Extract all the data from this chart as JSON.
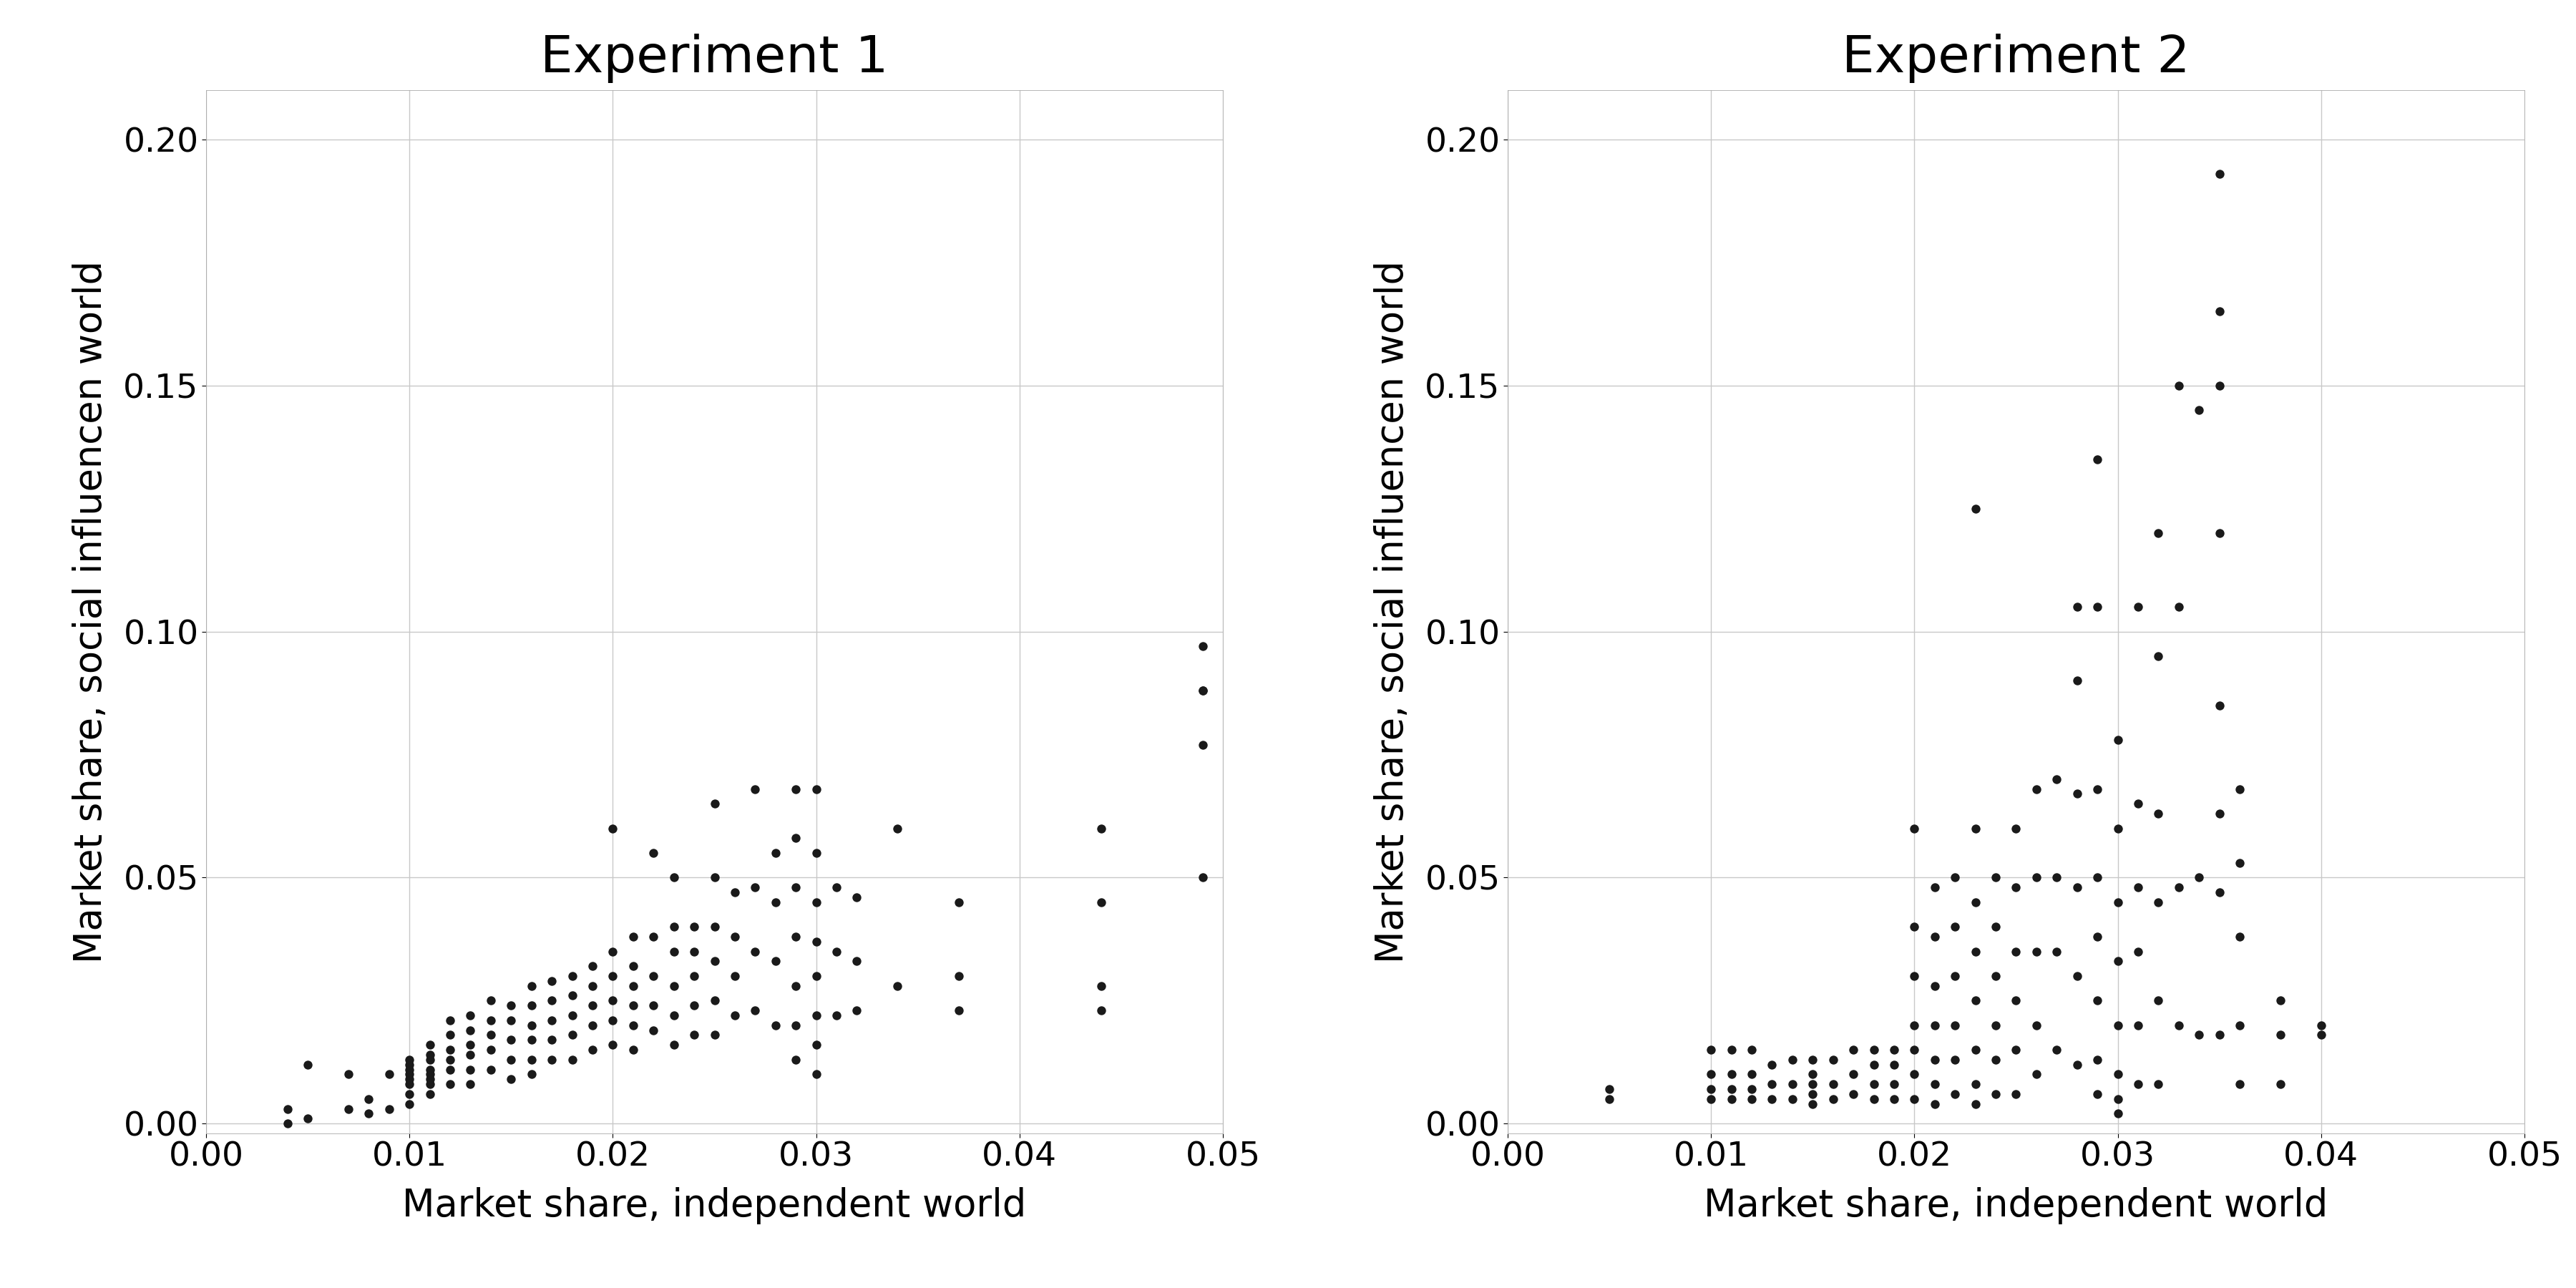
{
  "exp1_title": "Experiment 1",
  "exp2_title": "Experiment 2",
  "xlabel": "Market share, independent world",
  "ylabel": "Market share, social influencen world",
  "xlim1": [
    0.0,
    0.05
  ],
  "xlim2": [
    0.0,
    0.05
  ],
  "ylim": [
    -0.002,
    0.21
  ],
  "background_color": "#ffffff",
  "grid_color": "#c8c8c8",
  "dot_color": "#1a1a1a",
  "dot_size": 80,
  "title_fontsize": 52,
  "label_fontsize": 38,
  "tick_fontsize": 34,
  "exp1_x": [
    0.004,
    0.004,
    0.005,
    0.005,
    0.007,
    0.007,
    0.008,
    0.008,
    0.009,
    0.009,
    0.01,
    0.01,
    0.01,
    0.01,
    0.01,
    0.01,
    0.01,
    0.01,
    0.011,
    0.011,
    0.011,
    0.011,
    0.011,
    0.011,
    0.011,
    0.011,
    0.012,
    0.012,
    0.012,
    0.012,
    0.012,
    0.012,
    0.013,
    0.013,
    0.013,
    0.013,
    0.013,
    0.013,
    0.014,
    0.014,
    0.014,
    0.014,
    0.014,
    0.015,
    0.015,
    0.015,
    0.015,
    0.015,
    0.016,
    0.016,
    0.016,
    0.016,
    0.016,
    0.016,
    0.017,
    0.017,
    0.017,
    0.017,
    0.017,
    0.018,
    0.018,
    0.018,
    0.018,
    0.018,
    0.019,
    0.019,
    0.019,
    0.019,
    0.019,
    0.02,
    0.02,
    0.02,
    0.02,
    0.02,
    0.02,
    0.021,
    0.021,
    0.021,
    0.021,
    0.021,
    0.021,
    0.022,
    0.022,
    0.022,
    0.022,
    0.022,
    0.023,
    0.023,
    0.023,
    0.023,
    0.023,
    0.023,
    0.024,
    0.024,
    0.024,
    0.024,
    0.024,
    0.025,
    0.025,
    0.025,
    0.025,
    0.025,
    0.025,
    0.026,
    0.026,
    0.026,
    0.026,
    0.027,
    0.027,
    0.027,
    0.027,
    0.028,
    0.028,
    0.028,
    0.028,
    0.029,
    0.029,
    0.029,
    0.029,
    0.029,
    0.029,
    0.029,
    0.03,
    0.03,
    0.03,
    0.03,
    0.03,
    0.03,
    0.03,
    0.03,
    0.031,
    0.031,
    0.031,
    0.032,
    0.032,
    0.032,
    0.034,
    0.034,
    0.037,
    0.037,
    0.037,
    0.044,
    0.044,
    0.044,
    0.044,
    0.049,
    0.049,
    0.049,
    0.049,
    0.049
  ],
  "exp1_y": [
    0.003,
    0.0,
    0.012,
    0.001,
    0.01,
    0.003,
    0.005,
    0.002,
    0.01,
    0.003,
    0.013,
    0.012,
    0.011,
    0.01,
    0.009,
    0.008,
    0.006,
    0.004,
    0.016,
    0.014,
    0.013,
    0.011,
    0.01,
    0.009,
    0.008,
    0.006,
    0.021,
    0.018,
    0.015,
    0.013,
    0.011,
    0.008,
    0.022,
    0.019,
    0.016,
    0.014,
    0.011,
    0.008,
    0.025,
    0.021,
    0.018,
    0.015,
    0.011,
    0.024,
    0.021,
    0.017,
    0.013,
    0.009,
    0.028,
    0.024,
    0.02,
    0.017,
    0.013,
    0.01,
    0.029,
    0.025,
    0.021,
    0.017,
    0.013,
    0.03,
    0.026,
    0.022,
    0.018,
    0.013,
    0.032,
    0.028,
    0.024,
    0.02,
    0.015,
    0.06,
    0.035,
    0.03,
    0.025,
    0.021,
    0.016,
    0.038,
    0.032,
    0.028,
    0.024,
    0.02,
    0.015,
    0.055,
    0.038,
    0.03,
    0.024,
    0.019,
    0.05,
    0.04,
    0.035,
    0.028,
    0.022,
    0.016,
    0.04,
    0.035,
    0.03,
    0.024,
    0.018,
    0.065,
    0.05,
    0.04,
    0.033,
    0.025,
    0.018,
    0.047,
    0.038,
    0.03,
    0.022,
    0.068,
    0.048,
    0.035,
    0.023,
    0.055,
    0.045,
    0.033,
    0.02,
    0.068,
    0.058,
    0.048,
    0.038,
    0.028,
    0.02,
    0.013,
    0.068,
    0.055,
    0.045,
    0.037,
    0.03,
    0.022,
    0.016,
    0.01,
    0.048,
    0.035,
    0.022,
    0.046,
    0.033,
    0.023,
    0.06,
    0.028,
    0.045,
    0.03,
    0.023,
    0.06,
    0.045,
    0.028,
    0.023,
    0.097,
    0.088,
    0.088,
    0.077,
    0.05
  ],
  "exp2_x": [
    0.005,
    0.005,
    0.01,
    0.01,
    0.01,
    0.01,
    0.011,
    0.011,
    0.011,
    0.011,
    0.012,
    0.012,
    0.012,
    0.012,
    0.013,
    0.013,
    0.013,
    0.014,
    0.014,
    0.014,
    0.015,
    0.015,
    0.015,
    0.015,
    0.015,
    0.016,
    0.016,
    0.016,
    0.017,
    0.017,
    0.017,
    0.018,
    0.018,
    0.018,
    0.018,
    0.019,
    0.019,
    0.019,
    0.019,
    0.02,
    0.02,
    0.02,
    0.02,
    0.02,
    0.02,
    0.02,
    0.021,
    0.021,
    0.021,
    0.021,
    0.021,
    0.021,
    0.021,
    0.022,
    0.022,
    0.022,
    0.022,
    0.022,
    0.022,
    0.023,
    0.023,
    0.023,
    0.023,
    0.023,
    0.023,
    0.023,
    0.023,
    0.024,
    0.024,
    0.024,
    0.024,
    0.024,
    0.024,
    0.025,
    0.025,
    0.025,
    0.025,
    0.025,
    0.025,
    0.026,
    0.026,
    0.026,
    0.026,
    0.026,
    0.027,
    0.027,
    0.027,
    0.027,
    0.028,
    0.028,
    0.028,
    0.028,
    0.028,
    0.028,
    0.029,
    0.029,
    0.029,
    0.029,
    0.029,
    0.029,
    0.029,
    0.029,
    0.03,
    0.03,
    0.03,
    0.03,
    0.03,
    0.03,
    0.03,
    0.03,
    0.031,
    0.031,
    0.031,
    0.031,
    0.031,
    0.031,
    0.032,
    0.032,
    0.032,
    0.032,
    0.032,
    0.032,
    0.033,
    0.033,
    0.033,
    0.033,
    0.034,
    0.034,
    0.034,
    0.035,
    0.035,
    0.035,
    0.035,
    0.035,
    0.035,
    0.035,
    0.035,
    0.036,
    0.036,
    0.036,
    0.036,
    0.036,
    0.038,
    0.038,
    0.038,
    0.04,
    0.04
  ],
  "exp2_y": [
    0.007,
    0.005,
    0.015,
    0.01,
    0.007,
    0.005,
    0.015,
    0.01,
    0.007,
    0.005,
    0.015,
    0.01,
    0.007,
    0.005,
    0.012,
    0.008,
    0.005,
    0.013,
    0.008,
    0.005,
    0.013,
    0.01,
    0.008,
    0.006,
    0.004,
    0.013,
    0.008,
    0.005,
    0.015,
    0.01,
    0.006,
    0.015,
    0.012,
    0.008,
    0.005,
    0.015,
    0.012,
    0.008,
    0.005,
    0.06,
    0.04,
    0.03,
    0.02,
    0.015,
    0.01,
    0.005,
    0.048,
    0.038,
    0.028,
    0.02,
    0.013,
    0.008,
    0.004,
    0.05,
    0.04,
    0.03,
    0.02,
    0.013,
    0.006,
    0.125,
    0.06,
    0.045,
    0.035,
    0.025,
    0.015,
    0.008,
    0.004,
    0.05,
    0.04,
    0.03,
    0.02,
    0.013,
    0.006,
    0.06,
    0.048,
    0.035,
    0.025,
    0.015,
    0.006,
    0.068,
    0.05,
    0.035,
    0.02,
    0.01,
    0.07,
    0.05,
    0.035,
    0.015,
    0.105,
    0.09,
    0.067,
    0.048,
    0.03,
    0.012,
    0.135,
    0.105,
    0.068,
    0.05,
    0.038,
    0.025,
    0.013,
    0.006,
    0.078,
    0.06,
    0.045,
    0.033,
    0.02,
    0.01,
    0.005,
    0.002,
    0.105,
    0.065,
    0.048,
    0.035,
    0.02,
    0.008,
    0.12,
    0.095,
    0.063,
    0.045,
    0.025,
    0.008,
    0.15,
    0.105,
    0.048,
    0.02,
    0.145,
    0.05,
    0.018,
    0.193,
    0.165,
    0.15,
    0.12,
    0.085,
    0.063,
    0.047,
    0.018,
    0.068,
    0.053,
    0.038,
    0.02,
    0.008,
    0.025,
    0.018,
    0.008,
    0.02,
    0.018
  ]
}
